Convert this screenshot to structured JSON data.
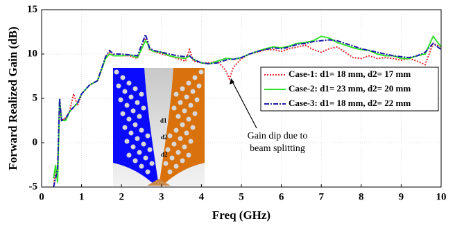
{
  "chart_data": {
    "type": "line",
    "xlabel": "Freq (GHz)",
    "ylabel": "Forward Realized Gain (dB)",
    "xlim": [
      0,
      10
    ],
    "ylim": [
      -5,
      15
    ],
    "xticks": [
      0,
      1,
      2,
      3,
      4,
      5,
      6,
      7,
      8,
      9,
      10
    ],
    "yticks": [
      -5,
      0,
      5,
      10,
      15
    ],
    "grid": true,
    "legend": "upper right",
    "x": [
      0.3,
      0.35,
      0.4,
      0.45,
      0.5,
      0.6,
      0.7,
      0.8,
      0.9,
      1.0,
      1.2,
      1.4,
      1.6,
      1.7,
      1.8,
      2.0,
      2.2,
      2.4,
      2.6,
      2.65,
      2.7,
      2.8,
      3.0,
      3.2,
      3.4,
      3.6,
      3.7,
      3.8,
      4.0,
      4.2,
      4.4,
      4.6,
      4.7,
      4.8,
      5.0,
      5.2,
      5.4,
      5.6,
      5.8,
      6.0,
      6.2,
      6.4,
      6.6,
      6.8,
      7.0,
      7.2,
      7.4,
      7.6,
      7.8,
      8.0,
      8.2,
      8.4,
      8.6,
      8.8,
      9.0,
      9.2,
      9.4,
      9.6,
      9.8,
      10.0
    ],
    "series": [
      {
        "name": "Case-1: d1= 18 mm, d2= 17 mm",
        "color": "#e8222a",
        "dash": "2,2",
        "values": [
          -5,
          -3,
          -3,
          4.5,
          2.5,
          2.8,
          3.5,
          5.5,
          4.2,
          5.5,
          6.5,
          7,
          9.5,
          10.2,
          9.8,
          9.8,
          9.8,
          9.5,
          11.8,
          11.5,
          10.5,
          10.3,
          10,
          9.8,
          9.5,
          9.2,
          10.5,
          9.2,
          9.0,
          9.0,
          9.2,
          8.2,
          7.2,
          8.5,
          9.5,
          10,
          10.2,
          10.5,
          10.5,
          10.3,
          10.6,
          10.8,
          11,
          10.5,
          10.2,
          10.6,
          10.8,
          10.2,
          9.6,
          9.5,
          9.8,
          9.5,
          9.6,
          9.5,
          9.3,
          9.5,
          9.2,
          8.8,
          11.2,
          10.8
        ]
      },
      {
        "name": "Case-2: d1= 23 mm, d2= 20 mm",
        "color": "#33e02a",
        "dash": "",
        "values": [
          -4,
          -2.5,
          -4.5,
          4.8,
          2.5,
          2.5,
          3.5,
          4,
          4.5,
          5.5,
          6.5,
          7,
          9.5,
          10,
          9.8,
          9.8,
          9.9,
          9.6,
          11.5,
          11.2,
          10.6,
          10.3,
          10.2,
          9.8,
          9.6,
          9.5,
          9.8,
          9.4,
          9.0,
          8.9,
          9.2,
          9.5,
          9.5,
          9.4,
          9.6,
          10,
          10.3,
          10.6,
          10.8,
          10.7,
          10.9,
          11.2,
          11.3,
          11.5,
          12,
          11.8,
          11.3,
          11,
          10.7,
          10.5,
          10.4,
          10,
          9.8,
          9.8,
          9.5,
          9.5,
          9.8,
          10,
          12,
          10.8
        ]
      },
      {
        "name": "Case-3: d1= 18 mm, d2= 22 mm",
        "color": "#1a1aa8",
        "dash": "7,2,2,2",
        "values": [
          -5,
          -4,
          -3,
          5,
          2.5,
          2.7,
          3.5,
          4,
          4.5,
          5.5,
          6.5,
          7,
          9.7,
          10.4,
          10,
          10,
          9.9,
          9.8,
          12.2,
          11.5,
          10.7,
          10.4,
          10.2,
          10,
          9.8,
          9.7,
          9.8,
          9.4,
          9.0,
          8.9,
          9.0,
          9.3,
          9.4,
          9.4,
          9.6,
          10,
          10.3,
          10.5,
          10.7,
          10.6,
          10.8,
          11.1,
          11.2,
          11.4,
          11.5,
          11.6,
          11.5,
          11.2,
          10.9,
          10.6,
          10.4,
          10.2,
          10.0,
          9.8,
          9.7,
          9.6,
          9.8,
          10.2,
          11.2,
          10.5
        ]
      }
    ],
    "annotation": [
      "Gain dip due to",
      "beam splitting"
    ],
    "inset_labels": [
      "d1",
      "d2",
      "d2"
    ]
  }
}
